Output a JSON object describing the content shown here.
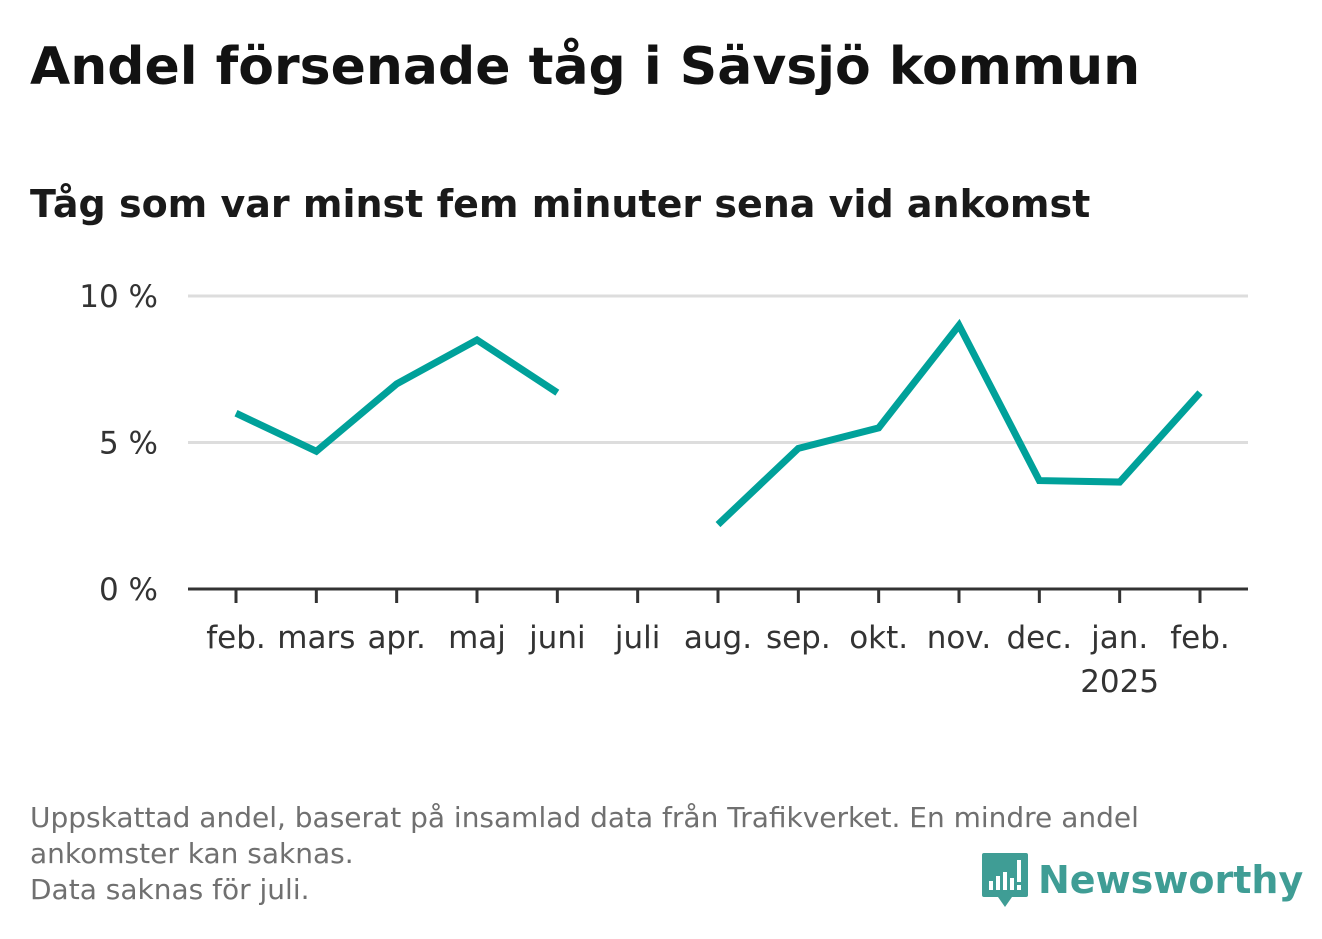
{
  "title": "Andel försenade tåg i Sävsjö kommun",
  "subtitle": "Tåg som var minst fem minuter sena vid ankomst",
  "chart_data": {
    "type": "line",
    "x": [
      "feb.",
      "mars",
      "apr.",
      "maj",
      "juni",
      "juli",
      "aug.",
      "sep.",
      "okt.",
      "nov.",
      "dec.",
      "jan.",
      "feb."
    ],
    "x_sublabels": [
      "",
      "",
      "",
      "",
      "",
      "",
      "",
      "",
      "",
      "",
      "",
      "2025",
      ""
    ],
    "series": [
      {
        "values": [
          6.0,
          4.7,
          7.0,
          8.5,
          6.7,
          null,
          2.2,
          4.8,
          5.5,
          9.0,
          3.7,
          3.65,
          6.7
        ]
      }
    ],
    "y_ticks": [
      0,
      5,
      10
    ],
    "y_tick_labels": [
      "0 %",
      "5 %",
      "10 %"
    ],
    "ylim": [
      0,
      10
    ],
    "grid": true,
    "line_color": "#00a19a",
    "grid_color": "#dddddd",
    "axis_color": "#333333"
  },
  "footnote": {
    "line1": "Uppskattad andel, baserat på insamlad data från Trafikverket. En mindre andel",
    "line2": "ankomster kan saknas.",
    "line3": "Data saknas för juli."
  },
  "brand": {
    "name": "Newsworthy",
    "color": "#3f9d95",
    "icon": "newsworthy-logo-icon"
  }
}
